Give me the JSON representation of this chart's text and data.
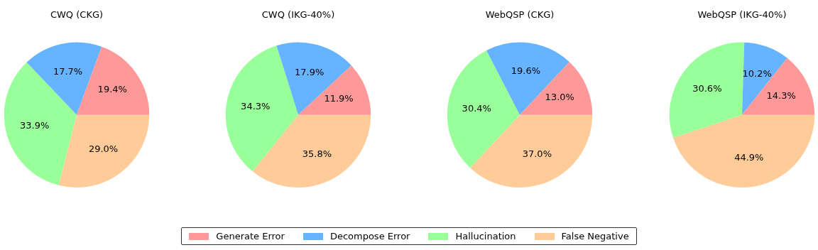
{
  "chart_data": [
    {
      "type": "pie",
      "title": "CWQ (CKG)",
      "categories": [
        "Generate Error",
        "Decompose Error",
        "Hallucination",
        "False Negative"
      ],
      "values": [
        19.4,
        17.7,
        33.9,
        29.0
      ],
      "value_labels": [
        "19.4%",
        "17.7%",
        "33.9%",
        "29.0%"
      ],
      "colors": [
        "#ff9999",
        "#66b3ff",
        "#99ff99",
        "#ffcc99"
      ],
      "legend": "bottom"
    },
    {
      "type": "pie",
      "title": "CWQ (IKG-40%)",
      "categories": [
        null,
        null,
        null,
        null
      ],
      "values": [
        11.9,
        17.9,
        34.3,
        35.8
      ],
      "value_labels": [
        "11.9%",
        "17.9%",
        "34.3%",
        "35.8%"
      ],
      "colors": [
        "#ff9999",
        "#66b3ff",
        "#99ff99",
        "#ffcc99"
      ]
    },
    {
      "type": "pie",
      "title": "WebQSP (CKG)",
      "categories": [
        null,
        null,
        null,
        null
      ],
      "values": [
        13.0,
        19.6,
        30.4,
        37.0
      ],
      "value_labels": [
        "13.0%",
        "19.6%",
        "30.4%",
        "37.0%"
      ],
      "colors": [
        "#ff9999",
        "#66b3ff",
        "#99ff99",
        "#ffcc99"
      ]
    },
    {
      "type": "pie",
      "title": "WebQSP (IKG-40%)",
      "categories": [
        null,
        null,
        null,
        null
      ],
      "values": [
        14.3,
        10.2,
        30.6,
        44.9
      ],
      "value_labels": [
        "14.3%",
        "10.2%",
        "30.6%",
        "44.9%"
      ],
      "colors": [
        "#ff9999",
        "#66b3ff",
        "#99ff99",
        "#ffcc99"
      ]
    }
  ]
}
